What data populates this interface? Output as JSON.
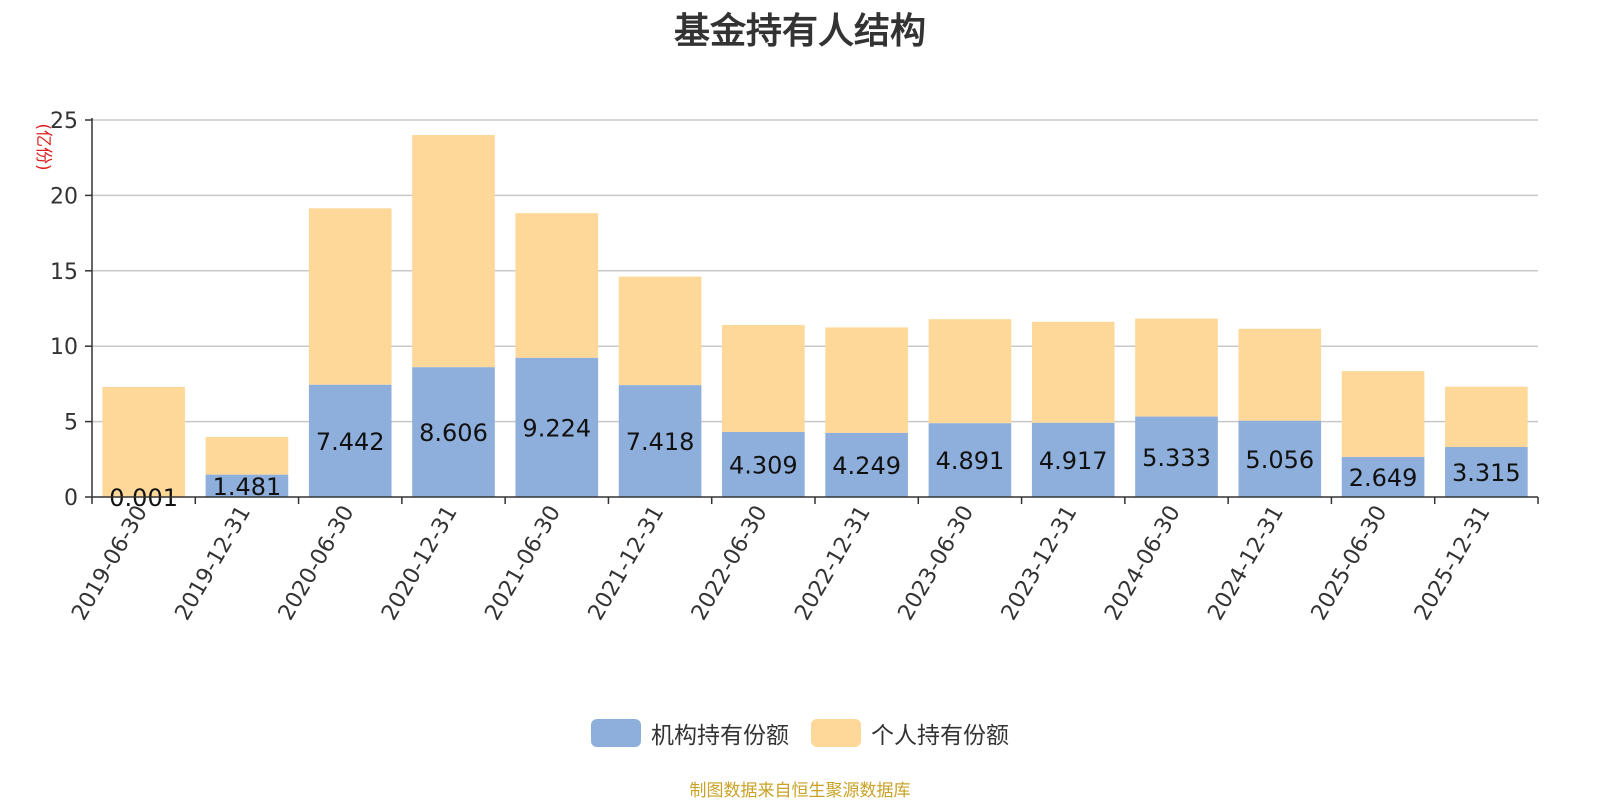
{
  "chart_data": {
    "type": "bar",
    "stacked": true,
    "title": "基金持有人结构",
    "ylabel": "(亿份)",
    "xlabel": "",
    "ylim": [
      0,
      25
    ],
    "yticks": [
      0,
      5,
      10,
      15,
      20,
      25
    ],
    "grid": true,
    "legend_position": "bottom",
    "categories": [
      "2019-06-30",
      "2019-12-31",
      "2020-06-30",
      "2020-12-31",
      "2021-06-30",
      "2021-12-31",
      "2022-06-30",
      "2022-12-31",
      "2023-06-30",
      "2023-12-31",
      "2024-06-30",
      "2024-12-31",
      "2025-06-30",
      "2025-12-31"
    ],
    "series": [
      {
        "name": "机构持有份额",
        "color": "#8eaedb",
        "values": [
          0.001,
          1.481,
          7.442,
          8.606,
          9.224,
          7.418,
          4.309,
          4.249,
          4.891,
          4.917,
          5.333,
          5.056,
          2.649,
          3.315
        ],
        "labels": [
          "0.001",
          "1.481",
          "7.442",
          "8.606",
          "9.224",
          "7.418",
          "4.309",
          "4.249",
          "4.891",
          "4.917",
          "5.333",
          "5.056",
          "2.649",
          "3.315"
        ]
      },
      {
        "name": "个人持有份额",
        "color": "#fed899",
        "values": [
          7.3,
          2.5,
          11.7,
          15.4,
          9.6,
          7.2,
          7.1,
          7.0,
          6.9,
          6.7,
          6.5,
          6.1,
          5.7,
          4.0
        ]
      }
    ]
  },
  "source_note": "制图数据来自恒生聚源数据库"
}
